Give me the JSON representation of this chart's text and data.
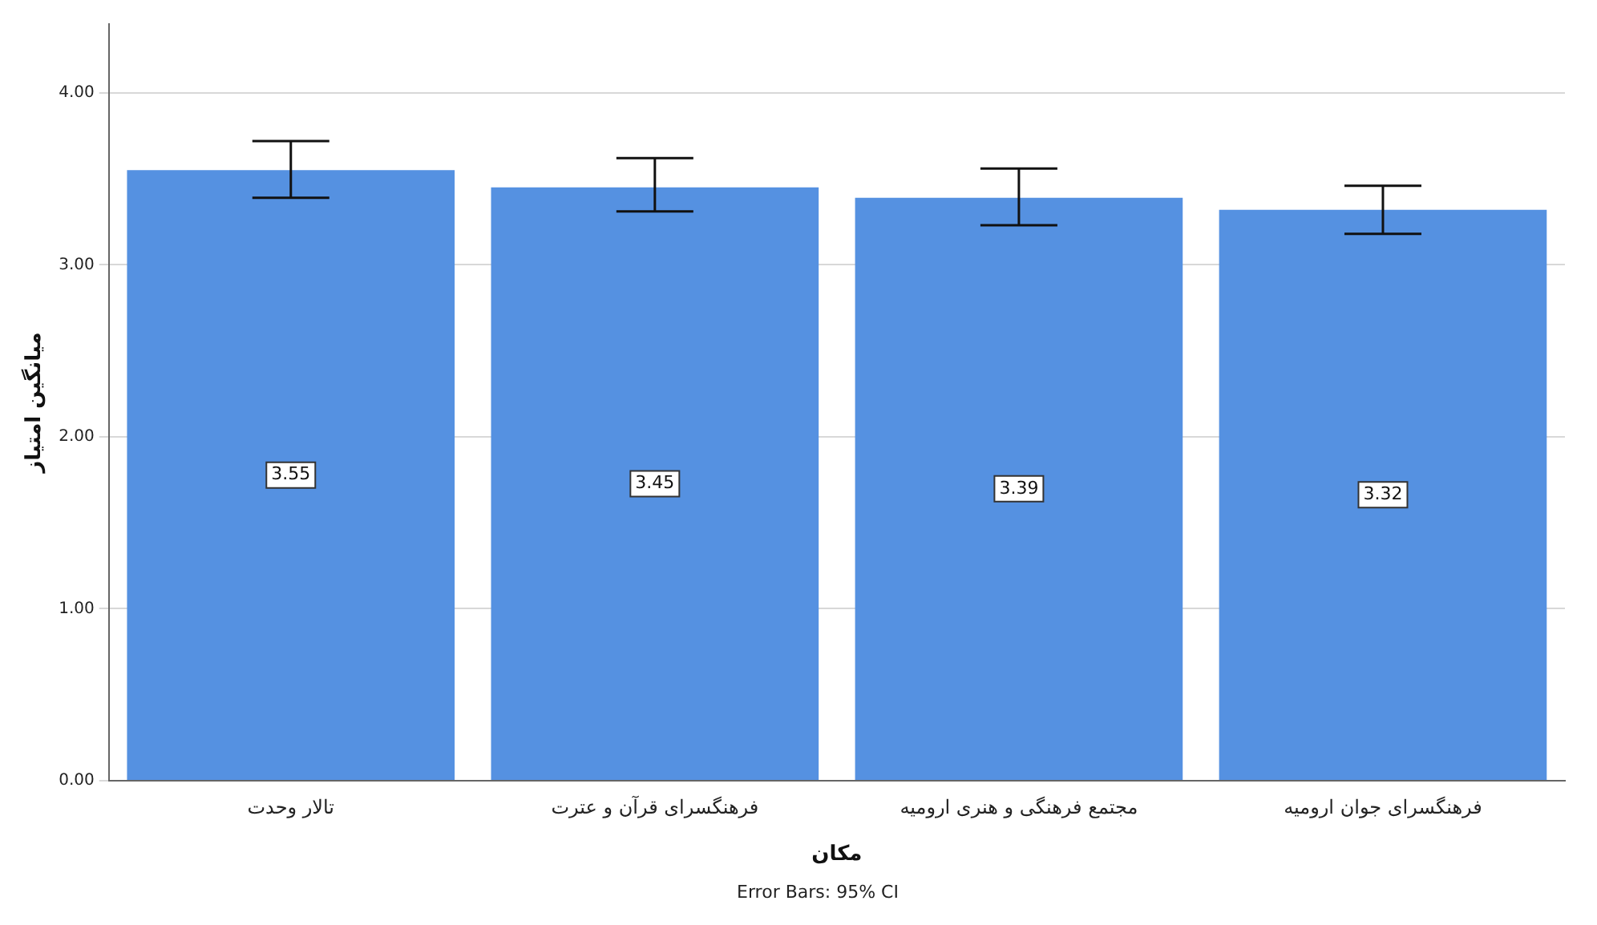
{
  "chart_data": {
    "type": "bar",
    "xlabel": "مکان",
    "ylabel": "میانگین امتیاز",
    "categories": [
      "تالار وحدت",
      "فرهنگسرای قرآن و عترت",
      "مجتمع فرهنگی و هنری ارومیه",
      "فرهنگسرای جوان ارومیه"
    ],
    "values": [
      3.55,
      3.45,
      3.39,
      3.32
    ],
    "errors": [
      [
        3.39,
        3.72
      ],
      [
        3.31,
        3.62
      ],
      [
        3.23,
        3.56
      ],
      [
        3.18,
        3.46
      ]
    ],
    "color": "#5591e1",
    "data_labels": true,
    "ylim": [
      0,
      4.4
    ],
    "yticks": [
      {
        "value": 0,
        "label": "0.00"
      },
      {
        "value": 1,
        "label": "1.00"
      },
      {
        "value": 2,
        "label": "2.00"
      },
      {
        "value": 3,
        "label": "3.00"
      },
      {
        "value": 4,
        "label": "4.00"
      }
    ],
    "grid": "y",
    "legend": false,
    "annotations": [
      "Error Bars: 95% CI"
    ]
  }
}
